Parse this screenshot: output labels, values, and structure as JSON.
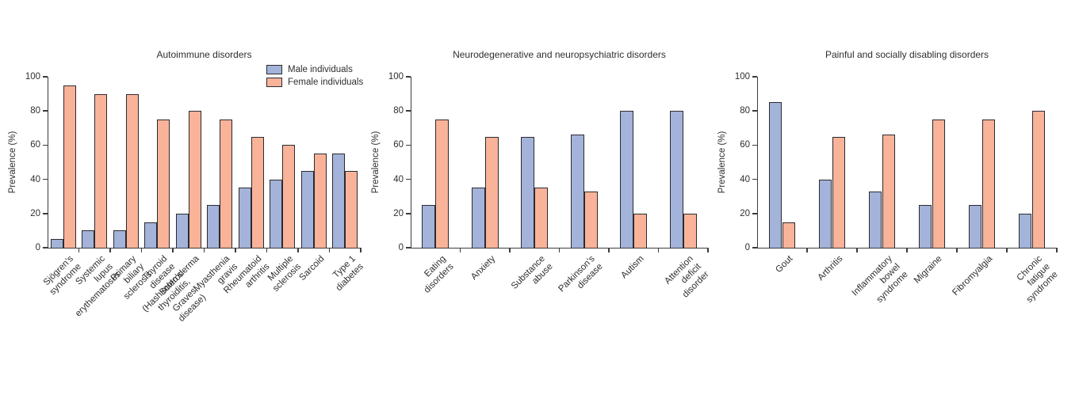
{
  "figure": {
    "background": "#ffffff",
    "text_color": "#2e2e2e",
    "axis_color": "#3c3c3c",
    "bar_border_color": "#2b2b30"
  },
  "chart_data": [
    {
      "type": "bar",
      "title": "Autoimmune disorders",
      "ylabel": "Prevalence (%)",
      "ylim": [
        0,
        100
      ],
      "yticks": [
        0,
        20,
        40,
        60,
        80,
        100
      ],
      "grid": false,
      "legend_position": "top-right",
      "categories": [
        "Sjögren’s syndrome",
        "Systemic lupus erythematosus",
        "Primary biliary sclerosis",
        "Thyroid disease\n(Hashimoto’s thyroiditis, Graves’ disease)",
        "Scleroderma",
        "Myasthenia gravis",
        "Rheumatoid arthritis",
        "Multiple sclerosis",
        "Sarcoid",
        "Type 1 diabetes"
      ],
      "series": [
        {
          "name": "Male individuals",
          "color": "#a3b3d9",
          "values": [
            5,
            10,
            10,
            15,
            20,
            25,
            35,
            40,
            45,
            55
          ]
        },
        {
          "name": "Female individuals",
          "color": "#f9b399",
          "values": [
            95,
            90,
            90,
            75,
            80,
            75,
            65,
            60,
            55,
            45
          ]
        }
      ]
    },
    {
      "type": "bar",
      "title": "Neurodegenerative and neuropsychiatric disorders",
      "ylabel": "Prevalence (%)",
      "ylim": [
        0,
        100
      ],
      "yticks": [
        0,
        20,
        40,
        60,
        80,
        100
      ],
      "grid": false,
      "legend_position": null,
      "categories": [
        "Eating disorders",
        "Anxiety",
        "Substance abuse",
        "Parkinson’s disease",
        "Autism",
        "Attention deficit\ndisorder"
      ],
      "series": [
        {
          "name": "Male individuals",
          "color": "#a3b3d9",
          "values": [
            25,
            35,
            65,
            66,
            80,
            80
          ]
        },
        {
          "name": "Female individuals",
          "color": "#f9b399",
          "values": [
            75,
            65,
            35,
            33,
            20,
            20
          ]
        }
      ]
    },
    {
      "type": "bar",
      "title": "Painful and socially disabling disorders",
      "ylabel": "Prevalence (%)",
      "ylim": [
        0,
        100
      ],
      "yticks": [
        0,
        20,
        40,
        60,
        80,
        100
      ],
      "grid": false,
      "legend_position": null,
      "categories": [
        "Gout",
        "Arthritis",
        "Inflammatory\nbowel syndrome",
        "Migraine",
        "Fibromyalgia",
        "Chronic fatigue\nsyndrome"
      ],
      "series": [
        {
          "name": "Male individuals",
          "color": "#a3b3d9",
          "values": [
            85,
            40,
            33,
            25,
            25,
            20
          ]
        },
        {
          "name": "Female individuals",
          "color": "#f9b399",
          "values": [
            15,
            65,
            66,
            75,
            75,
            80
          ]
        }
      ]
    }
  ]
}
